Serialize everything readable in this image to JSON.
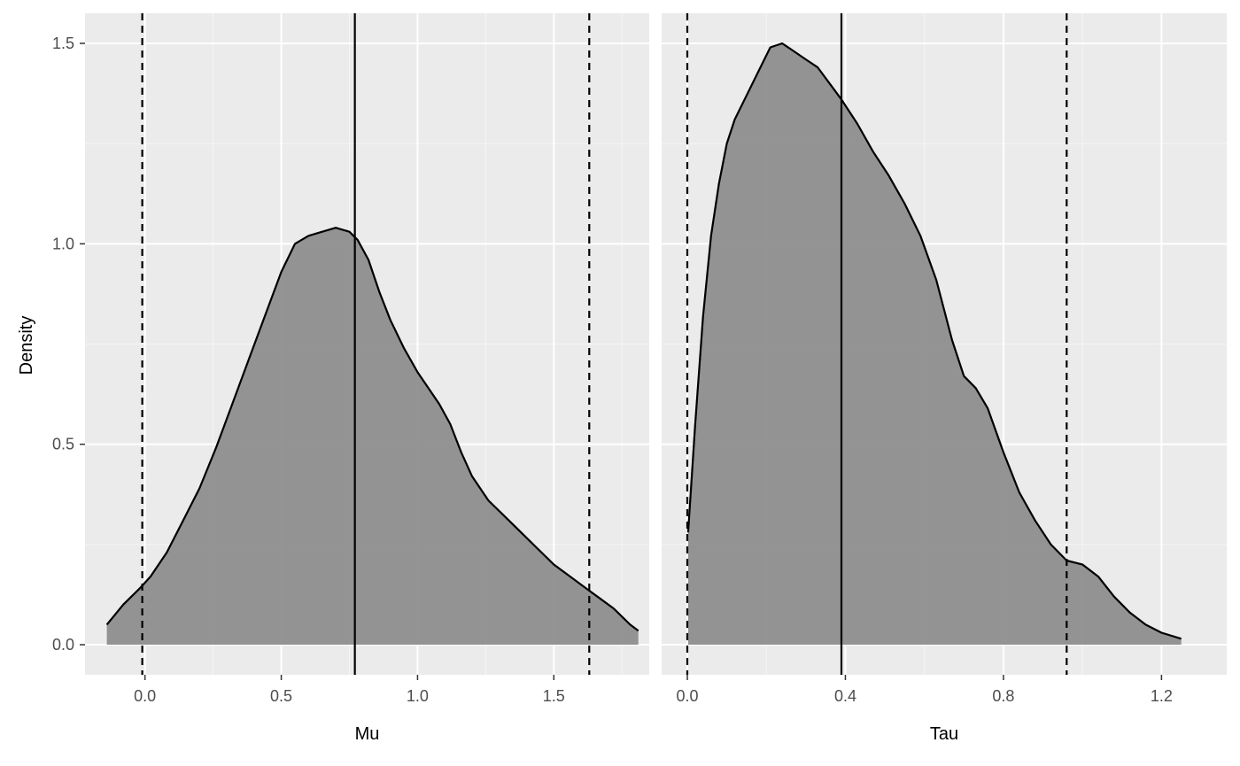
{
  "y_axis_title": "Density",
  "chart_data": [
    {
      "type": "area",
      "xlabel": "Mu",
      "ylabel": "Density",
      "xlim": [
        -0.22,
        1.85
      ],
      "ylim": [
        -0.075,
        1.575
      ],
      "x_ticks": [
        0.0,
        0.5,
        1.0,
        1.5
      ],
      "x_tick_labels": [
        "0.0",
        "0.5",
        "1.0",
        "1.5"
      ],
      "y_ticks": [
        0.0,
        0.5,
        1.0,
        1.5
      ],
      "y_tick_labels": [
        "0.0",
        "0.5",
        "1.0",
        "1.5"
      ],
      "grid": true,
      "fill_color": "#8e8e8e",
      "series": [
        {
          "x": [
            -0.14,
            -0.08,
            -0.02,
            0.02,
            0.08,
            0.14,
            0.2,
            0.26,
            0.32,
            0.38,
            0.44,
            0.5,
            0.55,
            0.6,
            0.65,
            0.7,
            0.75,
            0.78,
            0.82,
            0.86,
            0.9,
            0.95,
            1.0,
            1.04,
            1.08,
            1.12,
            1.16,
            1.2,
            1.26,
            1.32,
            1.38,
            1.44,
            1.5,
            1.56,
            1.62,
            1.66,
            1.72,
            1.78,
            1.81
          ],
          "y": [
            0.05,
            0.1,
            0.14,
            0.17,
            0.23,
            0.31,
            0.39,
            0.49,
            0.6,
            0.71,
            0.82,
            0.93,
            1.0,
            1.02,
            1.03,
            1.04,
            1.03,
            1.01,
            0.96,
            0.88,
            0.81,
            0.74,
            0.68,
            0.64,
            0.6,
            0.55,
            0.48,
            0.42,
            0.36,
            0.32,
            0.28,
            0.24,
            0.2,
            0.17,
            0.14,
            0.12,
            0.09,
            0.05,
            0.035
          ]
        }
      ],
      "vlines": [
        {
          "x": -0.01,
          "style": "dashed"
        },
        {
          "x": 0.77,
          "style": "solid"
        },
        {
          "x": 1.63,
          "style": "dashed"
        }
      ]
    },
    {
      "type": "area",
      "xlabel": "Tau",
      "ylabel": "Density",
      "xlim": [
        -0.065,
        1.365
      ],
      "ylim": [
        -0.075,
        1.575
      ],
      "x_ticks": [
        0.0,
        0.4,
        0.8,
        1.2
      ],
      "x_tick_labels": [
        "0.0",
        "0.4",
        "0.8",
        "1.2"
      ],
      "y_ticks": [
        0.0,
        0.5,
        1.0,
        1.5
      ],
      "y_tick_labels": [
        "0.0",
        "0.5",
        "1.0",
        "1.5"
      ],
      "grid": true,
      "fill_color": "#8e8e8e",
      "series": [
        {
          "x": [
            0.002,
            0.02,
            0.04,
            0.06,
            0.08,
            0.1,
            0.12,
            0.15,
            0.18,
            0.21,
            0.24,
            0.27,
            0.3,
            0.33,
            0.36,
            0.39,
            0.43,
            0.47,
            0.51,
            0.55,
            0.59,
            0.63,
            0.67,
            0.7,
            0.73,
            0.76,
            0.8,
            0.84,
            0.88,
            0.92,
            0.96,
            1.0,
            1.04,
            1.08,
            1.12,
            1.16,
            1.2,
            1.25
          ],
          "y": [
            0.28,
            0.55,
            0.82,
            1.02,
            1.15,
            1.25,
            1.31,
            1.37,
            1.43,
            1.49,
            1.5,
            1.48,
            1.46,
            1.44,
            1.4,
            1.36,
            1.3,
            1.23,
            1.17,
            1.1,
            1.02,
            0.91,
            0.76,
            0.67,
            0.64,
            0.59,
            0.48,
            0.38,
            0.31,
            0.25,
            0.21,
            0.2,
            0.17,
            0.12,
            0.08,
            0.05,
            0.03,
            0.015
          ]
        }
      ],
      "vlines": [
        {
          "x": 0.0,
          "style": "dashed"
        },
        {
          "x": 0.39,
          "style": "solid"
        },
        {
          "x": 0.96,
          "style": "dashed"
        }
      ]
    }
  ]
}
